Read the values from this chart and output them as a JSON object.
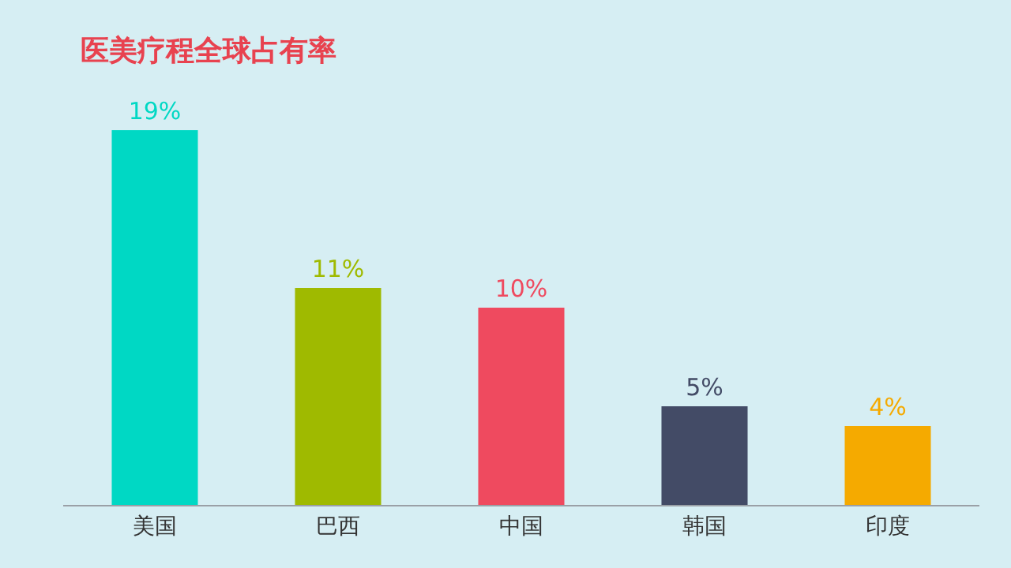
{
  "chart_data": {
    "type": "bar",
    "title": "医美疗程全球占有率",
    "categories": [
      "美国",
      "巴西",
      "中国",
      "韩国",
      "印度"
    ],
    "values": [
      19,
      11,
      10,
      5,
      4
    ],
    "value_labels": [
      "19%",
      "11%",
      "10%",
      "5%",
      "4%"
    ],
    "colors": [
      "#00d8c4",
      "#9fba00",
      "#ef4a5f",
      "#434b66",
      "#f5aa00"
    ],
    "tick_labels": "x",
    "grid": false,
    "legend": false
  }
}
